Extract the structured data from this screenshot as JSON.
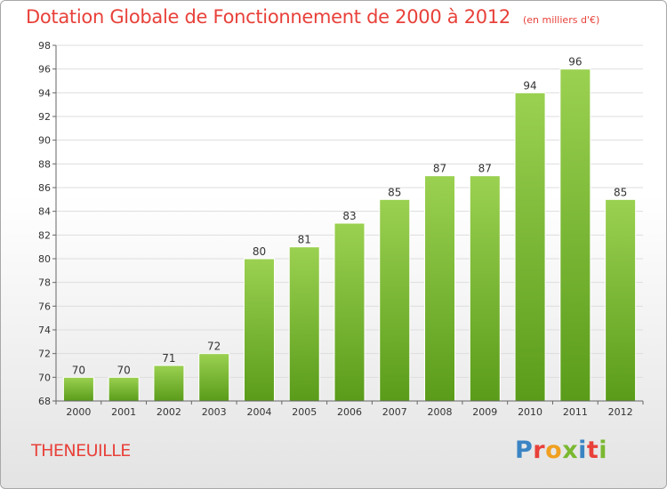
{
  "header": {
    "title": "Dotation Globale de Fonctionnement de 2000 à 2012",
    "subtitle": "(en milliers d'€)"
  },
  "footer": {
    "commune": "THENEUILLE",
    "logo_letters": [
      "P",
      "r",
      "o",
      "x",
      "i",
      "t",
      "i"
    ],
    "logo_colors": [
      "#3b84c4",
      "#e8413a",
      "#f0a020",
      "#7ab830",
      "#3b84c4",
      "#e8413a",
      "#7ab830"
    ]
  },
  "colors": {
    "bar_light": "#9bd151",
    "bar_dark": "#5a9c1a",
    "grid": "#dddddd",
    "axis": "#666666",
    "text": "#333333"
  },
  "chart_data": {
    "type": "bar",
    "title": "Dotation Globale de Fonctionnement de 2000 à 2012",
    "subtitle": "(en milliers d'€)",
    "categories": [
      "2000",
      "2001",
      "2002",
      "2003",
      "2004",
      "2005",
      "2006",
      "2007",
      "2008",
      "2009",
      "2010",
      "2011",
      "2012"
    ],
    "values": [
      70,
      70,
      71,
      72,
      80,
      81,
      83,
      85,
      87,
      87,
      94,
      96,
      85
    ],
    "ylim": [
      68,
      98
    ],
    "ytick_step": 2,
    "grid": true
  }
}
